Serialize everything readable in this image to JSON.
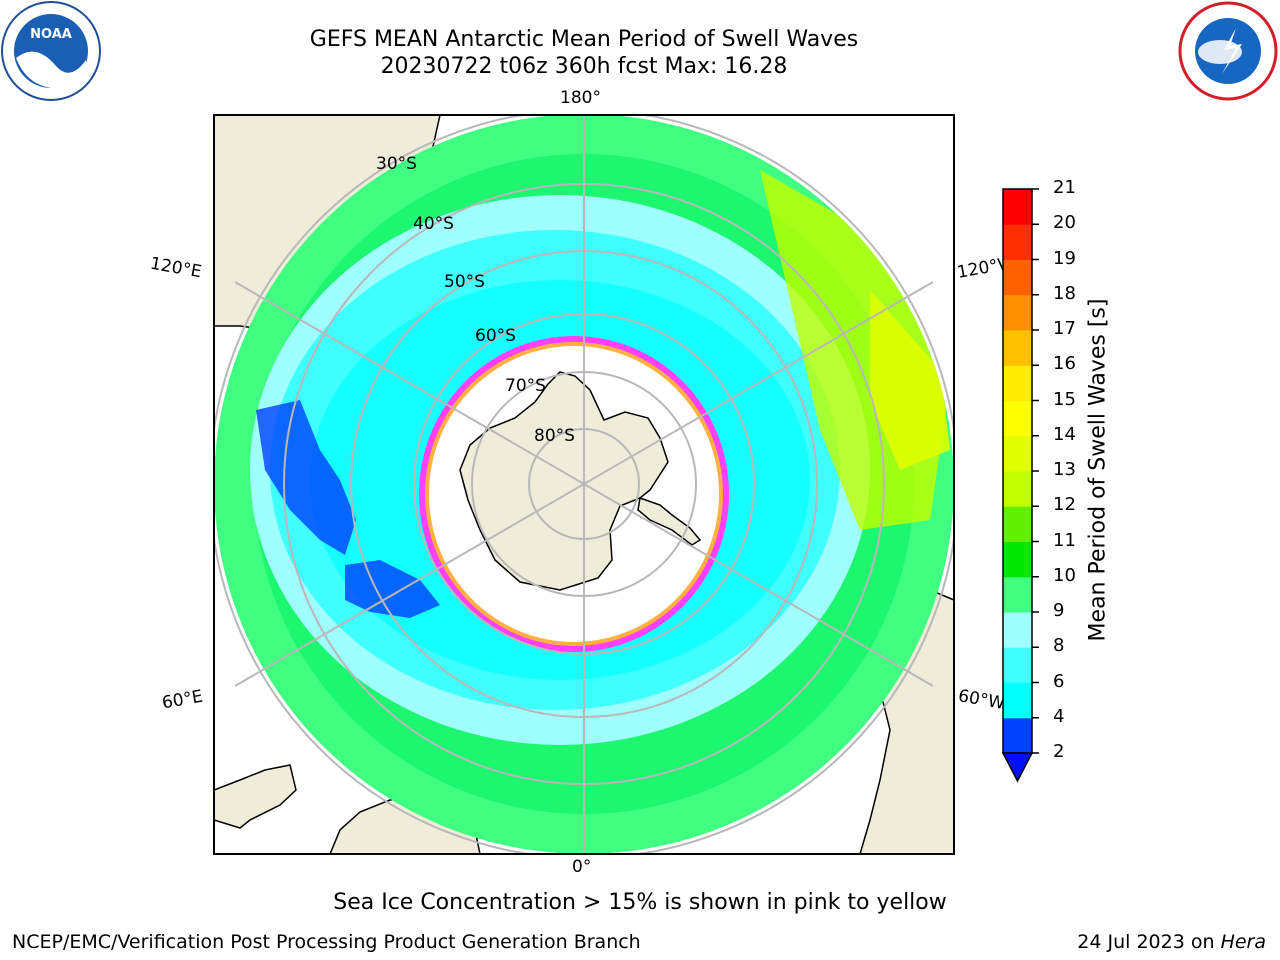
{
  "title_line1": "GEFS MEAN Antarctic Mean Period of Swell Waves",
  "title_line2": "20230722 t06z 360h fcst   Max: 16.28",
  "footnote": "Sea Ice Concentration > 15% is shown in pink to yellow",
  "credit": "NCEP/EMC/Verification Post Processing Product Generation Branch",
  "date_prefix": "24 Jul 2023 on ",
  "date_host": "Hera",
  "logos": {
    "left_text": "NOAA",
    "left_ring_text": "NATIONAL OCEANIC AND ATMOSPHERIC ADMINISTRATION · U.S. DEPARTMENT OF COMMERCE",
    "right_ring_text": "NATIONAL WEATHER SERVICE"
  },
  "map": {
    "projection": "south-polar-stereographic",
    "lon_labels": {
      "top": "180°",
      "bottom": "0°",
      "left_upper": "120°E",
      "left_lower": "60°E",
      "right_upper": "120°W",
      "right_lower": "60°W"
    },
    "lat_labels": [
      "30°S",
      "40°S",
      "50°S",
      "60°S",
      "70°S",
      "80°S"
    ],
    "land_color": "#efedd9",
    "grid_color": "#b8b8b8",
    "ice_edge_colors": [
      "#ff40ff",
      "#ffb040",
      "#ffff40"
    ]
  },
  "colorbar": {
    "label": "Mean Period of Swell Waves [s]",
    "ticks": [
      "2",
      "4",
      "6",
      "8",
      "9",
      "10",
      "11",
      "12",
      "13",
      "14",
      "15",
      "16",
      "17",
      "18",
      "19",
      "20",
      "21"
    ],
    "colors": [
      "#0040ff",
      "#00ffff",
      "#40ffff",
      "#a0ffff",
      "#40ff80",
      "#00e800",
      "#60f000",
      "#c0ff00",
      "#e0ff00",
      "#ffff00",
      "#ffec00",
      "#ffc000",
      "#ff9000",
      "#ff6000",
      "#ff3000",
      "#ff0000"
    ],
    "under_color": "#0010ff"
  }
}
